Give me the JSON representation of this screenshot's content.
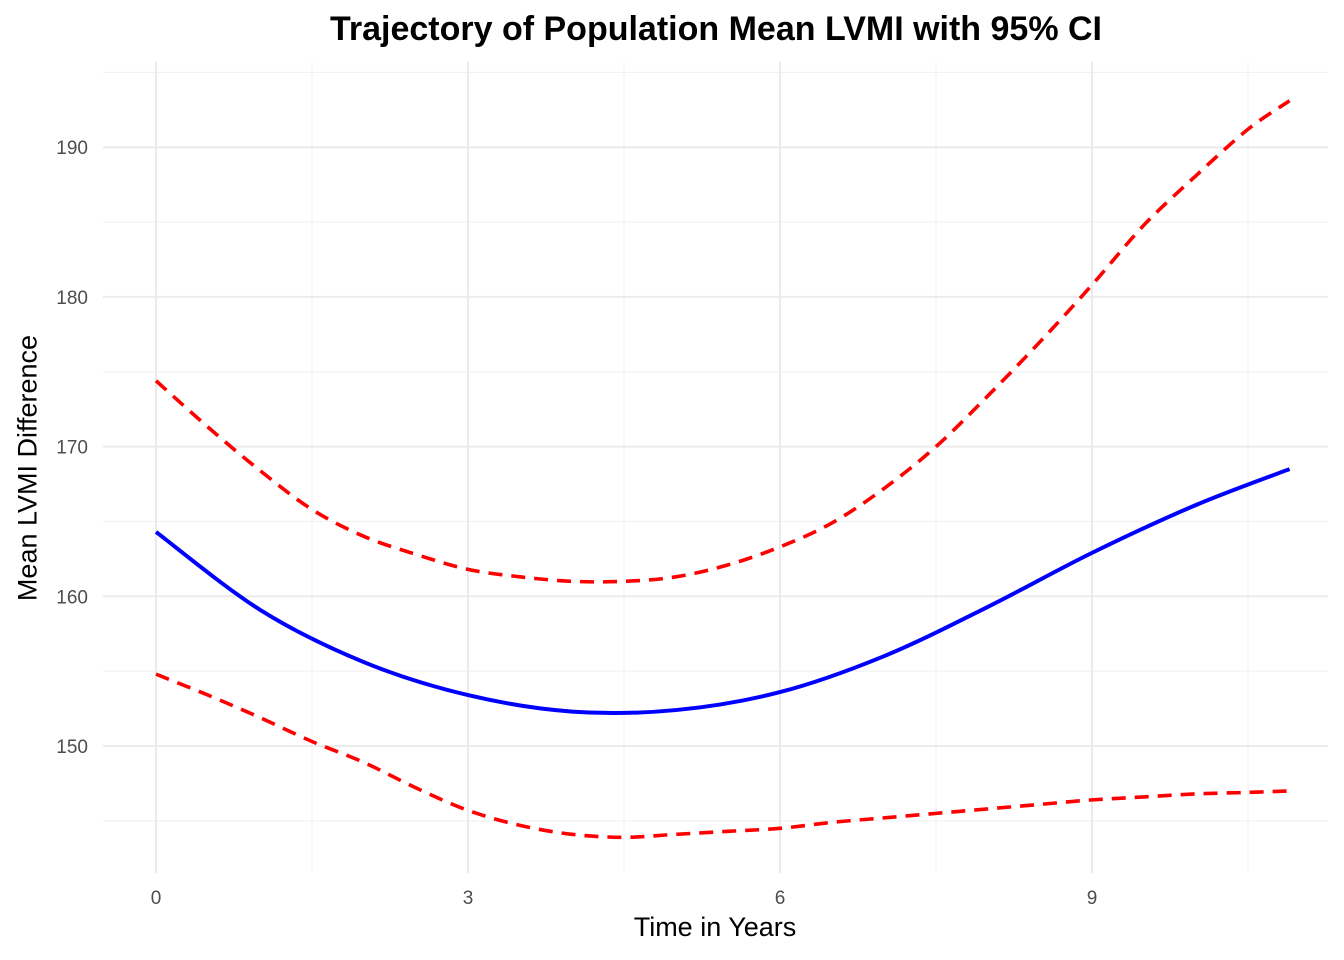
{
  "chart_data": {
    "type": "line",
    "title": "Trajectory of Population Mean LVMI with 95% CI",
    "xlabel": "Time in Years",
    "ylabel": "Mean LVMI Difference",
    "xlim": [
      -1.7,
      11.1
    ],
    "ylim": [
      143.5,
      196.0
    ],
    "x_ticks": [
      0,
      3,
      6,
      9
    ],
    "y_ticks": [
      150,
      160,
      170,
      180,
      190
    ],
    "grid": true,
    "legend": "none",
    "series": [
      {
        "role": "mean",
        "color": "#0000ff",
        "line_style": "solid",
        "x": [
          0,
          1,
          2,
          3,
          4,
          5,
          6,
          7,
          8,
          9,
          10,
          10.9
        ],
        "y": [
          164.3,
          159.1,
          155.6,
          153.4,
          152.3,
          152.4,
          153.6,
          156.0,
          159.3,
          162.9,
          166.1,
          168.5
        ]
      },
      {
        "role": "upper",
        "color": "#ff0000",
        "line_style": "dashed",
        "x": [
          0,
          0.5,
          1,
          1.5,
          2,
          2.5,
          3,
          3.5,
          4,
          4.5,
          5,
          5.5,
          6,
          6.5,
          7,
          7.5,
          8,
          8.5,
          9,
          9.5,
          10,
          10.5,
          10.9
        ],
        "y": [
          174.4,
          171.3,
          168.4,
          165.8,
          164.0,
          162.8,
          161.8,
          161.3,
          161.0,
          161.0,
          161.3,
          162.1,
          163.3,
          164.9,
          167.2,
          170.0,
          173.4,
          177.0,
          180.8,
          184.8,
          188.1,
          191.2,
          193.1
        ]
      },
      {
        "role": "lower",
        "color": "#ff0000",
        "line_style": "dashed",
        "x": [
          0,
          0.5,
          1,
          1.5,
          2,
          2.5,
          3,
          3.5,
          4,
          4.5,
          5,
          5.5,
          6,
          6.5,
          7,
          7.5,
          8,
          8.5,
          9,
          9.5,
          10,
          10.5,
          10.9
        ],
        "y": [
          154.8,
          153.4,
          151.9,
          150.3,
          148.9,
          147.2,
          145.7,
          144.7,
          144.1,
          143.9,
          144.1,
          144.3,
          144.5,
          144.9,
          145.2,
          145.5,
          145.8,
          146.1,
          146.4,
          146.6,
          146.8,
          146.9,
          147.0
        ]
      }
    ]
  }
}
